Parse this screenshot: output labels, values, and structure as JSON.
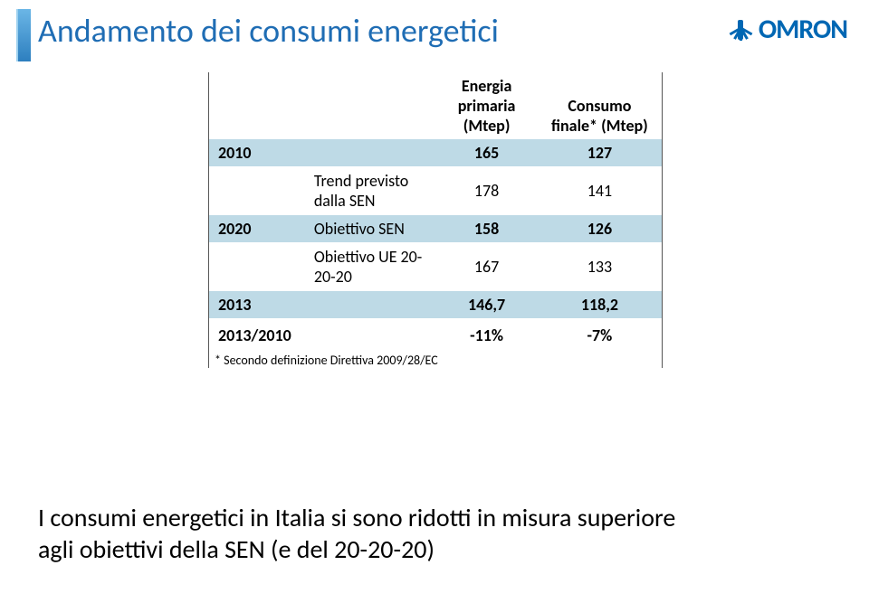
{
  "title": "Andamento dei consumi energetici",
  "logo_text": "OMRON",
  "table": {
    "headers": {
      "energy": "Energia primaria (Mtep)",
      "cons": "Consumo finale* (Mtep)"
    },
    "rows": [
      {
        "year": "2010",
        "label": "",
        "ep": "165",
        "cf": "127",
        "shade": true,
        "bold": true
      },
      {
        "year": "",
        "label": "Trend previsto dalla SEN",
        "ep": "178",
        "cf": "141",
        "shade": false,
        "pad": true
      },
      {
        "year": "2020",
        "label": "Obiettivo SEN",
        "ep": "158",
        "cf": "126",
        "shade": true,
        "bold": true
      },
      {
        "year": "",
        "label": "Obiettivo UE 20-20-20",
        "ep": "167",
        "cf": "133",
        "shade": false,
        "pad": true
      },
      {
        "year": "2013",
        "label": "",
        "ep": "146,7",
        "cf": "118,2",
        "shade": true,
        "bold": true
      },
      {
        "year": "2013/2010",
        "label": "",
        "ep": "-11%",
        "cf": "-7%",
        "shade": false,
        "bold": true,
        "small": true
      }
    ],
    "footnote": "* Secondo definizione Direttiva 2009/28/EC"
  },
  "subtitle_line1": "I consumi energetici in Italia si sono ridotti in misura superiore",
  "subtitle_line2": "agli obiettivi della SEN (e del 20-20-20)"
}
